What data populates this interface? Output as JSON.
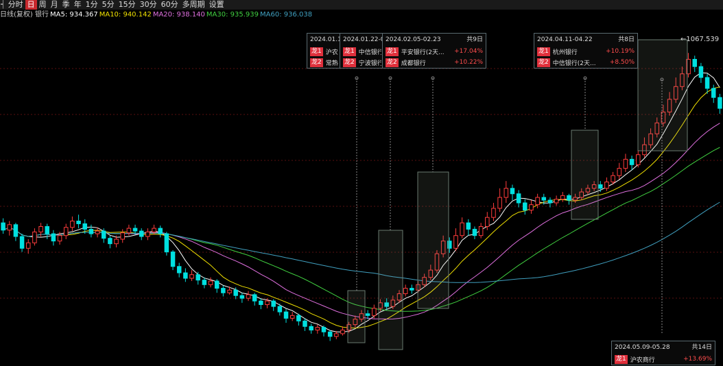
{
  "toolbar": {
    "items": [
      {
        "label": "┥",
        "active": false
      },
      {
        "label": "分时",
        "active": false
      },
      {
        "label": "日",
        "active": true
      },
      {
        "label": "周",
        "active": false
      },
      {
        "label": "月",
        "active": false
      },
      {
        "label": "季",
        "active": false
      },
      {
        "label": "年",
        "active": false
      },
      {
        "label": "1分",
        "active": false
      },
      {
        "label": "5分",
        "active": false
      },
      {
        "label": "15分",
        "active": false
      },
      {
        "label": "30分",
        "active": false
      },
      {
        "label": "60分",
        "active": false
      },
      {
        "label": "多周期",
        "active": false
      },
      {
        "label": "设置",
        "active": false
      }
    ]
  },
  "ma_bar": {
    "prefix": "日线(复权) 银行",
    "ma5": "MA5: 934.367",
    "ma10": "MA10: 940.142",
    "ma20": "MA20: 938.140",
    "ma30": "MA30: 935.939",
    "ma60": "MA60: 936.038",
    "colors": {
      "ma5": "#ffffff",
      "ma10": "#f0e000",
      "ma20": "#e070e0",
      "ma30": "#40d040",
      "ma60": "#40a0c0"
    }
  },
  "max_label": "1067.539",
  "popups": [
    {
      "range": "2024.01.1",
      "days": "",
      "rows": [
        {
          "tag": "龙1",
          "name": "沪农",
          "pct": ""
        },
        {
          "tag": "龙2",
          "name": "常熟",
          "pct": ""
        }
      ]
    },
    {
      "range": "2024.01.22-0",
      "days": "",
      "rows": [
        {
          "tag": "龙1",
          "name": "中信银行",
          "pct": ""
        },
        {
          "tag": "龙2",
          "name": "宁波银行",
          "pct": ""
        }
      ]
    },
    {
      "range": "2024.02.05-02.23",
      "days": "共9日",
      "rows": [
        {
          "tag": "龙1",
          "name": "平安银行(2天...",
          "pct": "+17.04%"
        },
        {
          "tag": "龙2",
          "name": "成都银行",
          "pct": "+10.22%"
        }
      ]
    },
    {
      "range": "2024.04.11-04.22",
      "days": "共8日",
      "rows": [
        {
          "tag": "龙1",
          "name": "杭州银行",
          "pct": "+10.19%"
        },
        {
          "tag": "龙2",
          "name": "中信银行(2天...",
          "pct": "+8.50%"
        }
      ]
    },
    {
      "range": "2024.05.09-05.28",
      "days": "共14日",
      "rows": [
        {
          "tag": "龙1",
          "name": "沪农商行",
          "pct": "+13.69%"
        }
      ]
    }
  ],
  "chart_data": {
    "type": "candlestick",
    "y_max_label": 1067.539,
    "colors": {
      "up": "#ff3c3c",
      "down": "#00e0e0",
      "grid": "#5a1010"
    },
    "candles": [
      [
        880,
        872,
        885,
        868
      ],
      [
        872,
        878,
        882,
        866
      ],
      [
        878,
        865,
        880,
        860
      ],
      [
        865,
        852,
        868,
        848
      ],
      [
        852,
        858,
        862,
        846
      ],
      [
        858,
        870,
        874,
        855
      ],
      [
        870,
        876,
        880,
        865
      ],
      [
        876,
        868,
        879,
        862
      ],
      [
        868,
        860,
        872,
        855
      ],
      [
        860,
        866,
        870,
        856
      ],
      [
        866,
        875,
        879,
        862
      ],
      [
        875,
        882,
        887,
        871
      ],
      [
        882,
        879,
        889,
        874
      ],
      [
        879,
        873,
        884,
        868
      ],
      [
        873,
        868,
        878,
        864
      ],
      [
        868,
        871,
        875,
        864
      ],
      [
        871,
        863,
        874,
        858
      ],
      [
        863,
        857,
        866,
        852
      ],
      [
        857,
        862,
        866,
        853
      ],
      [
        862,
        869,
        873,
        858
      ],
      [
        869,
        874,
        878,
        866
      ],
      [
        874,
        871,
        878,
        867
      ],
      [
        871,
        865,
        874,
        861
      ],
      [
        865,
        870,
        874,
        861
      ],
      [
        870,
        874,
        878,
        867
      ],
      [
        874,
        868,
        877,
        864
      ],
      [
        868,
        848,
        870,
        844
      ],
      [
        848,
        832,
        850,
        828
      ],
      [
        832,
        825,
        836,
        820
      ],
      [
        825,
        819,
        830,
        815
      ],
      [
        819,
        823,
        828,
        816
      ],
      [
        823,
        817,
        826,
        812
      ],
      [
        817,
        812,
        820,
        808
      ],
      [
        812,
        816,
        820,
        809
      ],
      [
        816,
        808,
        818,
        803
      ],
      [
        808,
        803,
        811,
        799
      ],
      [
        803,
        806,
        810,
        801
      ],
      [
        806,
        800,
        809,
        796
      ],
      [
        800,
        797,
        803,
        792
      ],
      [
        797,
        801,
        805,
        794
      ],
      [
        801,
        794,
        803,
        789
      ],
      [
        794,
        790,
        797,
        785
      ],
      [
        790,
        794,
        797,
        786
      ],
      [
        794,
        788,
        796,
        783
      ],
      [
        788,
        782,
        791,
        778
      ],
      [
        782,
        775,
        785,
        770
      ],
      [
        775,
        778,
        782,
        772
      ],
      [
        778,
        772,
        780,
        767
      ],
      [
        772,
        766,
        775,
        761
      ],
      [
        766,
        762,
        769,
        758
      ],
      [
        762,
        765,
        768,
        758
      ],
      [
        765,
        760,
        767,
        755
      ],
      [
        760,
        755,
        762,
        750
      ],
      [
        755,
        758,
        761,
        752
      ],
      [
        758,
        762,
        766,
        756
      ],
      [
        762,
        768,
        771,
        759
      ],
      [
        768,
        774,
        778,
        765
      ],
      [
        774,
        780,
        784,
        771
      ],
      [
        780,
        778,
        784,
        774
      ],
      [
        778,
        786,
        790,
        775
      ],
      [
        786,
        792,
        796,
        783
      ],
      [
        792,
        788,
        797,
        784
      ],
      [
        788,
        795,
        800,
        785
      ],
      [
        795,
        802,
        806,
        792
      ],
      [
        802,
        808,
        812,
        799
      ],
      [
        808,
        806,
        812,
        802
      ],
      [
        806,
        812,
        816,
        803
      ],
      [
        812,
        820,
        824,
        809
      ],
      [
        820,
        828,
        834,
        817
      ],
      [
        828,
        846,
        850,
        825
      ],
      [
        846,
        860,
        866,
        842
      ],
      [
        860,
        852,
        864,
        847
      ],
      [
        852,
        866,
        874,
        849
      ],
      [
        866,
        880,
        886,
        863
      ],
      [
        880,
        873,
        884,
        866
      ],
      [
        873,
        866,
        876,
        862
      ],
      [
        866,
        876,
        880,
        863
      ],
      [
        876,
        886,
        892,
        872
      ],
      [
        886,
        896,
        902,
        882
      ],
      [
        896,
        908,
        918,
        892
      ],
      [
        908,
        918,
        926,
        902
      ],
      [
        918,
        912,
        922,
        905
      ],
      [
        912,
        902,
        916,
        897
      ],
      [
        902,
        894,
        906,
        889
      ],
      [
        894,
        900,
        905,
        890
      ],
      [
        900,
        908,
        912,
        896
      ],
      [
        908,
        905,
        912,
        900
      ],
      [
        905,
        902,
        908,
        897
      ],
      [
        902,
        906,
        910,
        899
      ],
      [
        906,
        910,
        914,
        903
      ],
      [
        910,
        905,
        912,
        900
      ],
      [
        905,
        908,
        912,
        902
      ],
      [
        908,
        914,
        918,
        905
      ],
      [
        914,
        918,
        922,
        911
      ],
      [
        918,
        922,
        926,
        915
      ],
      [
        922,
        918,
        926,
        914
      ],
      [
        918,
        925,
        930,
        915
      ],
      [
        925,
        932,
        936,
        922
      ],
      [
        932,
        940,
        946,
        928
      ],
      [
        940,
        950,
        956,
        936
      ],
      [
        950,
        944,
        954,
        938
      ],
      [
        944,
        955,
        960,
        941
      ],
      [
        955,
        966,
        974,
        952
      ],
      [
        966,
        978,
        984,
        962
      ],
      [
        978,
        990,
        996,
        974
      ],
      [
        990,
        1002,
        1010,
        986
      ],
      [
        1002,
        1016,
        1024,
        998
      ],
      [
        1016,
        1030,
        1040,
        1012
      ],
      [
        1030,
        1044,
        1052,
        1026
      ],
      [
        1044,
        1060,
        1067,
        1040
      ],
      [
        1060,
        1052,
        1064,
        1046
      ],
      [
        1052,
        1040,
        1056,
        1034
      ],
      [
        1040,
        1028,
        1044,
        1022
      ],
      [
        1028,
        1018,
        1032,
        1012
      ],
      [
        1018,
        1006,
        1022,
        1000
      ]
    ]
  }
}
